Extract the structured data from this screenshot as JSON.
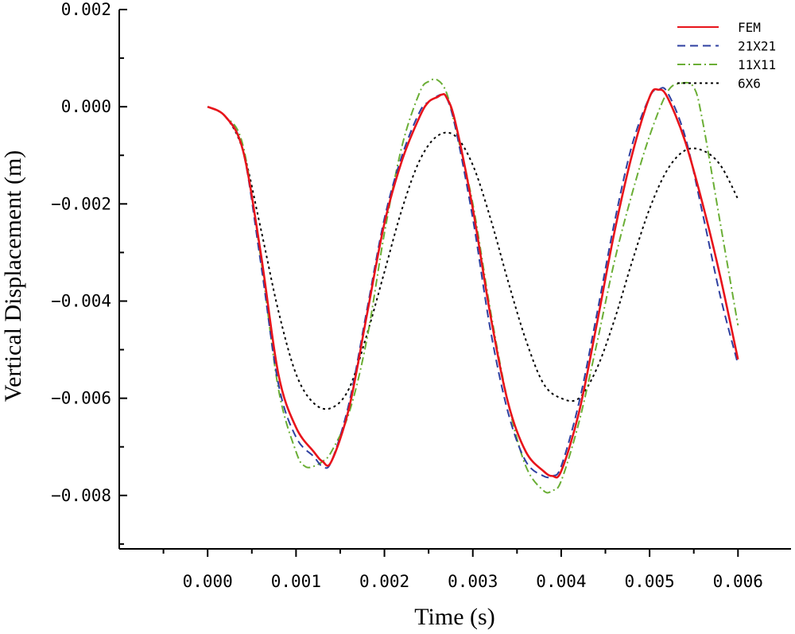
{
  "chart_data": {
    "type": "line",
    "title": "",
    "xlabel": "Time (s)",
    "ylabel": "Vertical Displacement (m)",
    "xlim": [
      -0.001,
      0.0066
    ],
    "ylim": [
      -0.0091,
      0.002
    ],
    "xticks": [
      0.0,
      0.001,
      0.002,
      0.003,
      0.004,
      0.005,
      0.006
    ],
    "xtick_labels": [
      "0.000",
      "0.001",
      "0.002",
      "0.003",
      "0.004",
      "0.005",
      "0.006"
    ],
    "yticks": [
      0.002,
      0.0,
      -0.002,
      -0.004,
      -0.006,
      -0.008
    ],
    "ytick_labels": [
      "0.002",
      "0.000",
      "−0.002",
      "−0.004",
      "−0.006",
      "−0.008"
    ],
    "legend_position": "top-right",
    "series": [
      {
        "name": "FEM",
        "color": "#e8131b",
        "dash": "solid",
        "x": [
          0,
          0.0002,
          0.0004,
          0.0006,
          0.0008,
          0.001,
          0.0012,
          0.0013,
          0.0014,
          0.0016,
          0.0018,
          0.002,
          0.0022,
          0.0024,
          0.0025,
          0.0026,
          0.00265,
          0.0027,
          0.0028,
          0.003,
          0.0032,
          0.0034,
          0.0036,
          0.0038,
          0.0039,
          0.004,
          0.0042,
          0.0044,
          0.0046,
          0.0048,
          0.005,
          0.0051,
          0.0052,
          0.0054,
          0.0056,
          0.0058,
          0.006
        ],
        "values": [
          0,
          -0.0002,
          -0.0009,
          -0.003,
          -0.0055,
          -0.0066,
          -0.0071,
          -0.0073,
          -0.0073,
          -0.0062,
          -0.0043,
          -0.0024,
          -0.0011,
          -0.0002,
          0.0001,
          0.0002,
          0.00025,
          0.0002,
          -0.0003,
          -0.0021,
          -0.0043,
          -0.0061,
          -0.0071,
          -0.0075,
          -0.0076,
          -0.0075,
          -0.0063,
          -0.0045,
          -0.0026,
          -0.001,
          0.0002,
          0.00035,
          0.0002,
          -0.0007,
          -0.002,
          -0.0035,
          -0.0052
        ]
      },
      {
        "name": "21X21",
        "color": "#2e3fa0",
        "dash": "10,6",
        "x": [
          0,
          0.0002,
          0.0004,
          0.0006,
          0.0008,
          0.001,
          0.0012,
          0.0013,
          0.0014,
          0.0016,
          0.0018,
          0.002,
          0.0022,
          0.0024,
          0.0025,
          0.0026,
          0.00265,
          0.0027,
          0.0028,
          0.003,
          0.0032,
          0.0034,
          0.0036,
          0.0038,
          0.0039,
          0.004,
          0.0042,
          0.0044,
          0.0046,
          0.0048,
          0.005,
          0.0051,
          0.0052,
          0.0054,
          0.0056,
          0.0058,
          0.006
        ],
        "values": [
          0,
          -0.0002,
          -0.0009,
          -0.0032,
          -0.0057,
          -0.0068,
          -0.0072,
          -0.0074,
          -0.0073,
          -0.0061,
          -0.0042,
          -0.0023,
          -0.001,
          -0.0001,
          0.0001,
          0.00022,
          0.00025,
          0.0002,
          -0.0004,
          -0.0023,
          -0.0046,
          -0.0063,
          -0.0073,
          -0.0076,
          -0.0076,
          -0.0074,
          -0.0061,
          -0.0043,
          -0.0024,
          -0.0008,
          0.0002,
          0.00035,
          0.0003,
          -0.0006,
          -0.0022,
          -0.0039,
          -0.0053
        ]
      },
      {
        "name": "11X11",
        "color": "#6aae35",
        "dash": "10,4,2,4",
        "x": [
          0,
          0.0002,
          0.0004,
          0.0006,
          0.0008,
          0.001,
          0.0011,
          0.0012,
          0.0013,
          0.0014,
          0.0016,
          0.0018,
          0.002,
          0.0022,
          0.0024,
          0.0025,
          0.0026,
          0.0027,
          0.0028,
          0.003,
          0.0032,
          0.0034,
          0.0036,
          0.0038,
          0.0039,
          0.004,
          0.0042,
          0.0044,
          0.0046,
          0.0048,
          0.005,
          0.0052,
          0.00535,
          0.0055,
          0.0056,
          0.0058,
          0.006
        ],
        "values": [
          0,
          -0.0002,
          -0.0008,
          -0.0031,
          -0.0058,
          -0.0071,
          -0.0074,
          -0.0074,
          -0.0073,
          -0.0071,
          -0.0063,
          -0.0048,
          -0.0026,
          -0.0008,
          0.0003,
          0.00052,
          0.00055,
          0.0003,
          -0.0004,
          -0.002,
          -0.0042,
          -0.0061,
          -0.0074,
          -0.0079,
          -0.0079,
          -0.0077,
          -0.0065,
          -0.0049,
          -0.0032,
          -0.0018,
          -0.0006,
          0.0003,
          0.00048,
          0.0004,
          -0.0003,
          -0.0024,
          -0.0045
        ]
      },
      {
        "name": "6X6",
        "color": "#000000",
        "dash": "3,4",
        "x": [
          0,
          0.0002,
          0.0004,
          0.0006,
          0.0008,
          0.001,
          0.0012,
          0.0014,
          0.0016,
          0.0018,
          0.002,
          0.0022,
          0.0024,
          0.0026,
          0.0028,
          0.003,
          0.0032,
          0.0034,
          0.0036,
          0.0038,
          0.004,
          0.0042,
          0.0044,
          0.0046,
          0.0048,
          0.005,
          0.0052,
          0.0054,
          0.0056,
          0.0058,
          0.006
        ],
        "values": [
          0,
          -0.0002,
          -0.0009,
          -0.0025,
          -0.0042,
          -0.0055,
          -0.0061,
          -0.0062,
          -0.0058,
          -0.0047,
          -0.0034,
          -0.0021,
          -0.0011,
          -0.0006,
          -0.0006,
          -0.0012,
          -0.0023,
          -0.0036,
          -0.0048,
          -0.0057,
          -0.006,
          -0.006,
          -0.0054,
          -0.0044,
          -0.0032,
          -0.0021,
          -0.0013,
          -0.0009,
          -0.0009,
          -0.0012,
          -0.0019
        ]
      }
    ]
  }
}
